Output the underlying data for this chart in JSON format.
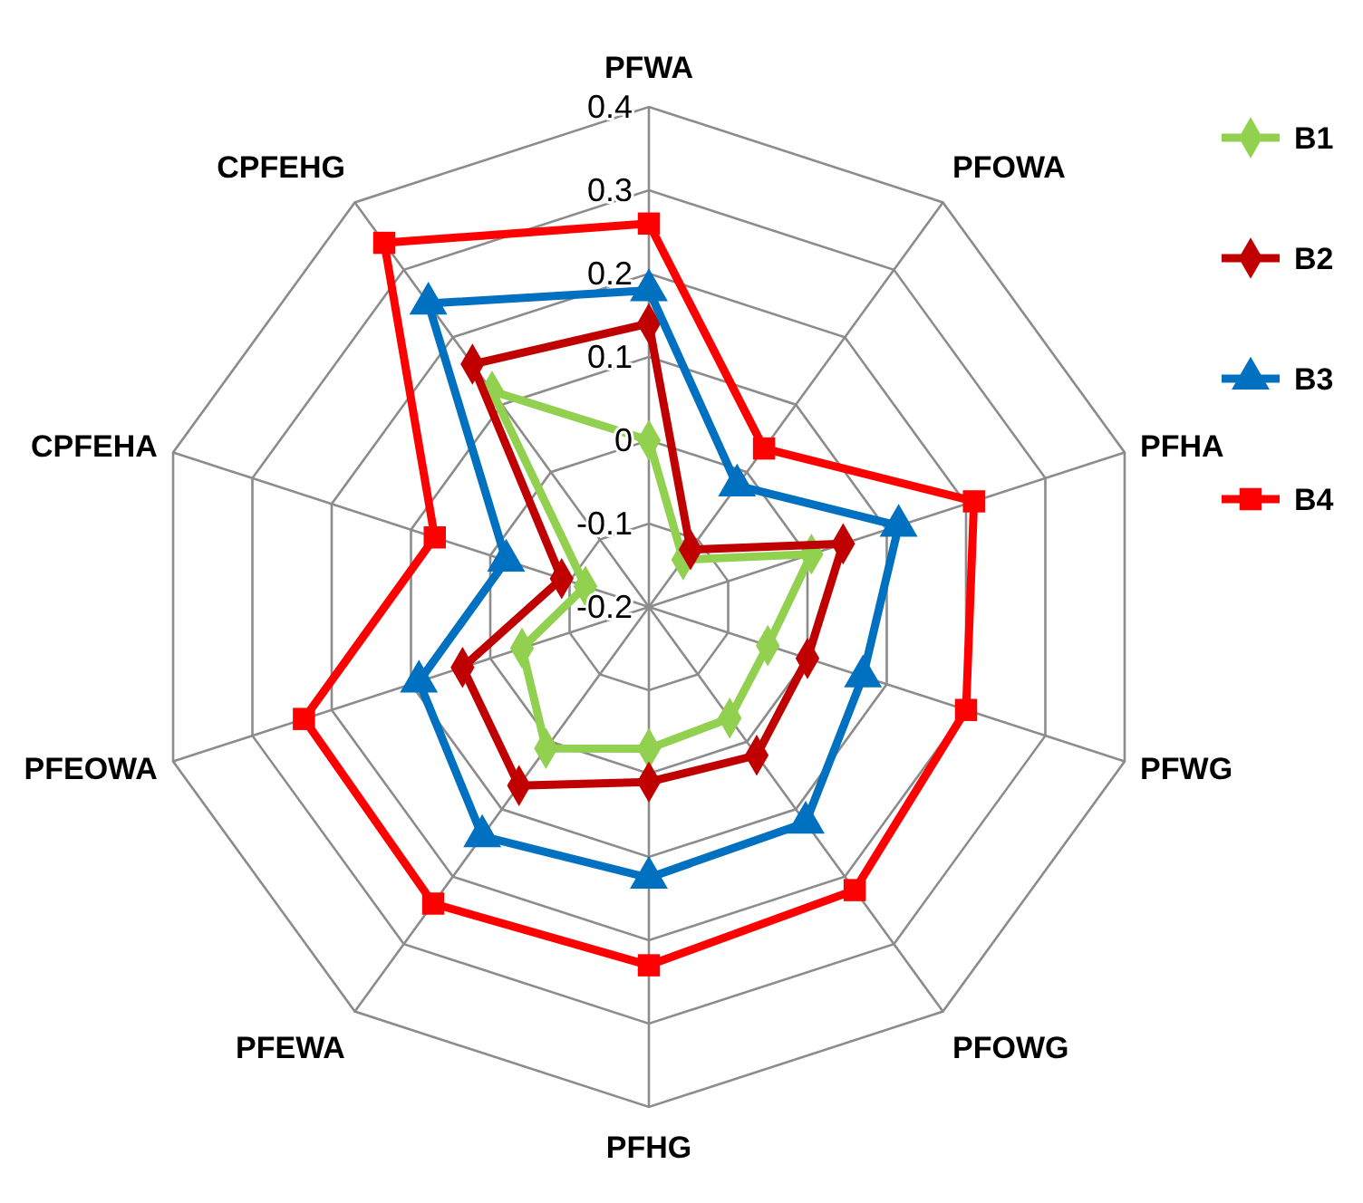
{
  "chart_data": {
    "type": "radar",
    "categories": [
      "PFWA",
      "PFOWA",
      "PFHA",
      "PFWG",
      "PFOWG",
      "PFHG",
      "PFEWA",
      "PFEOWA",
      "CPFEHA",
      "CPFEHG"
    ],
    "ylim": [
      -0.2,
      0.4
    ],
    "yticks": [
      -0.2,
      -0.1,
      0,
      0.1,
      0.2,
      0.3,
      0.4
    ],
    "grid": true,
    "legend": "right",
    "series": [
      {
        "name": "B1",
        "color": "#92d050",
        "marker": "diamond",
        "values": [
          0.0,
          -0.13,
          0.005,
          -0.05,
          -0.035,
          -0.03,
          0.01,
          -0.04,
          -0.12,
          0.12
        ]
      },
      {
        "name": "B2",
        "color": "#c00000",
        "marker": "diamond",
        "values": [
          0.14,
          -0.115,
          0.045,
          0.0,
          0.02,
          0.01,
          0.065,
          0.035,
          -0.09,
          0.16
        ]
      },
      {
        "name": "B3",
        "color": "#0070c0",
        "marker": "triangle",
        "values": [
          0.18,
          -0.02,
          0.115,
          0.07,
          0.12,
          0.125,
          0.14,
          0.09,
          -0.02,
          0.25
        ]
      },
      {
        "name": "B4",
        "color": "#ff0000",
        "marker": "square",
        "values": [
          0.26,
          0.035,
          0.21,
          0.2,
          0.22,
          0.23,
          0.24,
          0.235,
          0.07,
          0.34
        ]
      }
    ]
  }
}
